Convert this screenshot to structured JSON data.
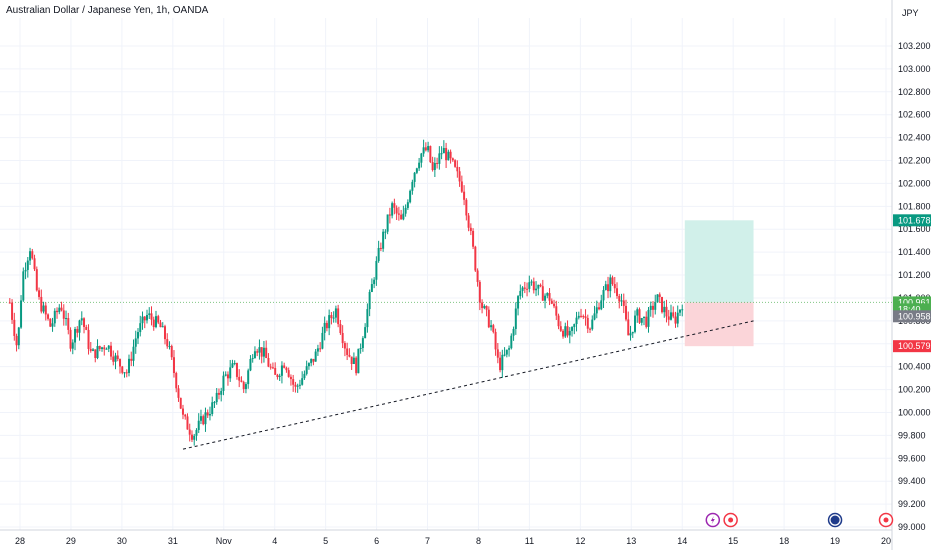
{
  "chart_data": {
    "type": "candlestick",
    "title": "Australian Dollar / Japanese Yen, 1h, OANDA",
    "currency": "JPY",
    "y_axis": {
      "min": 99.0,
      "max": 103.3,
      "ticks": [
        "103.200",
        "103.000",
        "102.800",
        "102.600",
        "102.400",
        "102.200",
        "102.000",
        "101.800",
        "101.600",
        "101.400",
        "101.200",
        "101.000",
        "100.800",
        "100.600",
        "100.400",
        "100.200",
        "100.000",
        "99.800",
        "99.600",
        "99.400",
        "99.200",
        "99.000"
      ]
    },
    "x_axis": {
      "range": [
        27.8,
        20.6
      ],
      "ticks": [
        {
          "label": "28",
          "x": 28
        },
        {
          "label": "29",
          "x": 29
        },
        {
          "label": "30",
          "x": 30
        },
        {
          "label": "31",
          "x": 31
        },
        {
          "label": "Nov",
          "x": 32
        },
        {
          "label": "4",
          "x": 33
        },
        {
          "label": "5",
          "x": 34
        },
        {
          "label": "6",
          "x": 35
        },
        {
          "label": "7",
          "x": 36
        },
        {
          "label": "8",
          "x": 37
        },
        {
          "label": "11",
          "x": 38
        },
        {
          "label": "12",
          "x": 39
        },
        {
          "label": "13",
          "x": 40
        },
        {
          "label": "14",
          "x": 41
        },
        {
          "label": "15",
          "x": 42
        },
        {
          "label": "18",
          "x": 43
        },
        {
          "label": "19",
          "x": 44
        },
        {
          "label": "20",
          "x": 45
        }
      ],
      "note": "x values are sequential trading-day indices matching printed date labels"
    },
    "price_path": [
      [
        27.8,
        100.96
      ],
      [
        27.95,
        100.55
      ],
      [
        28.05,
        101.2
      ],
      [
        28.2,
        101.45
      ],
      [
        28.35,
        101.0
      ],
      [
        28.6,
        100.75
      ],
      [
        28.8,
        100.95
      ],
      [
        29.0,
        100.6
      ],
      [
        29.2,
        100.85
      ],
      [
        29.4,
        100.5
      ],
      [
        29.7,
        100.6
      ],
      [
        29.9,
        100.45
      ],
      [
        30.1,
        100.35
      ],
      [
        30.3,
        100.7
      ],
      [
        30.5,
        100.85
      ],
      [
        30.75,
        100.75
      ],
      [
        30.9,
        100.6
      ],
      [
        31.05,
        100.3
      ],
      [
        31.2,
        99.95
      ],
      [
        31.4,
        99.8
      ],
      [
        31.6,
        99.95
      ],
      [
        31.85,
        100.1
      ],
      [
        32.0,
        100.3
      ],
      [
        32.2,
        100.4
      ],
      [
        32.4,
        100.2
      ],
      [
        32.6,
        100.6
      ],
      [
        32.8,
        100.5
      ],
      [
        33.0,
        100.3
      ],
      [
        33.2,
        100.45
      ],
      [
        33.4,
        100.2
      ],
      [
        33.6,
        100.35
      ],
      [
        33.8,
        100.5
      ],
      [
        34.0,
        100.75
      ],
      [
        34.2,
        100.9
      ],
      [
        34.4,
        100.55
      ],
      [
        34.6,
        100.4
      ],
      [
        34.8,
        100.85
      ],
      [
        34.95,
        101.2
      ],
      [
        35.1,
        101.5
      ],
      [
        35.3,
        101.8
      ],
      [
        35.5,
        101.65
      ],
      [
        35.7,
        102.05
      ],
      [
        35.85,
        102.25
      ],
      [
        36.0,
        102.3
      ],
      [
        36.1,
        102.1
      ],
      [
        36.3,
        102.3
      ],
      [
        36.5,
        102.15
      ],
      [
        36.7,
        101.95
      ],
      [
        36.9,
        101.4
      ],
      [
        37.05,
        100.95
      ],
      [
        37.25,
        100.75
      ],
      [
        37.4,
        100.4
      ],
      [
        37.6,
        100.55
      ],
      [
        37.8,
        101.05
      ],
      [
        38.0,
        101.15
      ],
      [
        38.2,
        101.05
      ],
      [
        38.4,
        101.0
      ],
      [
        38.6,
        100.75
      ],
      [
        38.8,
        100.65
      ],
      [
        39.0,
        100.9
      ],
      [
        39.2,
        100.75
      ],
      [
        39.4,
        101.0
      ],
      [
        39.6,
        101.15
      ],
      [
        39.8,
        101.0
      ],
      [
        39.95,
        100.65
      ],
      [
        40.1,
        100.85
      ],
      [
        40.3,
        100.8
      ],
      [
        40.5,
        101.0
      ],
      [
        40.7,
        100.85
      ],
      [
        40.85,
        100.8
      ],
      [
        41.0,
        100.96
      ]
    ],
    "trendline": {
      "from": [
        31.2,
        99.68
      ],
      "to": [
        42.4,
        100.8
      ],
      "style": "dashed"
    },
    "position": {
      "type": "long",
      "x_start": 41.05,
      "x_end": 42.4,
      "entry": 100.961,
      "target": 101.678,
      "stop": 100.579,
      "profit_color": "#d1f0ea",
      "loss_color": "#fbd5d9"
    },
    "price_badges": [
      {
        "value": "101.678",
        "price": 101.678,
        "color": "#089981"
      },
      {
        "value": "100.961",
        "price": 100.961,
        "color": "#4caf50"
      },
      {
        "value": "18:40",
        "price": 100.9,
        "color": "#4caf50"
      },
      {
        "value": "100.958",
        "price": 100.84,
        "color": "#787b86"
      },
      {
        "value": "100.579",
        "price": 100.579,
        "color": "#f23645"
      }
    ],
    "event_markers": [
      {
        "icon": "lightning-icon",
        "x": 41.6,
        "color": "#9c27b0"
      },
      {
        "icon": "dividend-icon",
        "x": 41.95,
        "color": "#f23645"
      },
      {
        "icon": "australia-flag-icon",
        "x": 44.0,
        "color": "#1e3a8a"
      },
      {
        "icon": "dividend-icon",
        "x": 45.0,
        "color": "#f23645"
      }
    ],
    "colors": {
      "up": "#089981",
      "down": "#f23645",
      "grid": "#f0f3fa"
    }
  }
}
